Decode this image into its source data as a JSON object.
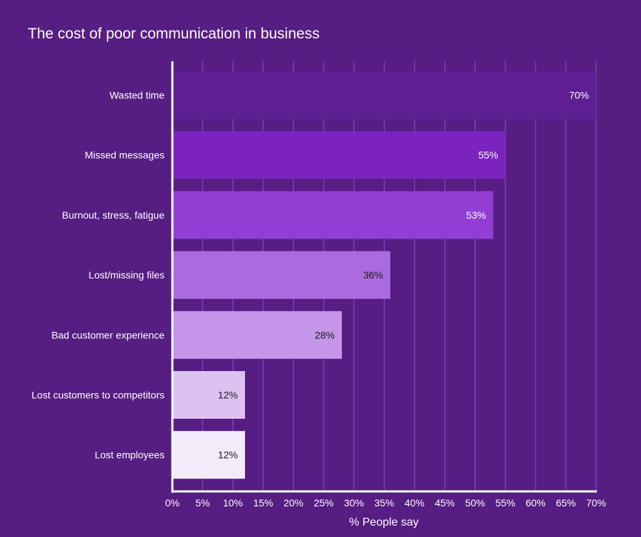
{
  "colors": {
    "background": "#561d82",
    "grid": "#7f3cc4",
    "axis": "#ffffff"
  },
  "chart_data": {
    "type": "bar",
    "orientation": "horizontal",
    "title": "The cost of poor communication in business",
    "xlabel": "% People say",
    "ylabel": "",
    "xlim": [
      0,
      70
    ],
    "grid": true,
    "x_ticks": [
      "0%",
      "5%",
      "10%",
      "15%",
      "20%",
      "25%",
      "30%",
      "35%",
      "40%",
      "45%",
      "50%",
      "55%",
      "60%",
      "65%",
      "70%"
    ],
    "categories": [
      "Wasted time",
      "Missed messages",
      "Burnout, stress, fatigue",
      "Lost/missing files",
      "Bad customer experience",
      "Lost customers to competitors",
      "Lost employees"
    ],
    "values": [
      70,
      55,
      53,
      36,
      28,
      12,
      12
    ],
    "data_labels": [
      "70%",
      "55%",
      "53%",
      "36%",
      "28%",
      "12%",
      "12%"
    ],
    "bar_colors": [
      "#5e1f92",
      "#7b24bd",
      "#923ed5",
      "#ab6bdf",
      "#c495e8",
      "#dcc1f1",
      "#f3ebfa"
    ],
    "label_colors": [
      "#ffffff",
      "#ffffff",
      "#ffffff",
      "#1a1a1a",
      "#1a1a1a",
      "#1a1a1a",
      "#1a1a1a"
    ]
  }
}
